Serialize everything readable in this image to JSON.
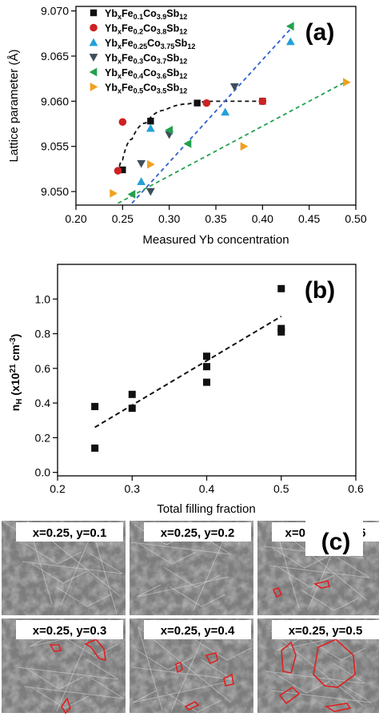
{
  "panel_labels": {
    "a": "(a)",
    "b": "(b)",
    "c": "(c)"
  },
  "chart_data": [
    {
      "type": "scatter",
      "panel": "(a)",
      "xlabel": "Measured Yb concentration",
      "ylabel": "Lattice parameter (Å)",
      "xlim": [
        0.2,
        0.5
      ],
      "ylim": [
        9.0485,
        9.0705
      ],
      "xticks": [
        "0.20",
        "0.25",
        "0.30",
        "0.35",
        "0.40",
        "0.45",
        "0.50"
      ],
      "yticks": [
        "9.050",
        "9.055",
        "9.060",
        "9.065",
        "9.070"
      ],
      "ytick_values": [
        9.05,
        9.055,
        9.06,
        9.065,
        9.07
      ],
      "legend_position": "top-left",
      "series": [
        {
          "name": [
            "Yb",
            "x",
            "Fe",
            "0.1",
            "Co",
            "3.9",
            "Sb",
            "12"
          ],
          "marker": "square",
          "color": "#111111",
          "points": [
            [
              0.25,
              9.0524
            ],
            [
              0.28,
              9.0578
            ],
            [
              0.33,
              9.0598
            ],
            [
              0.4,
              9.06
            ]
          ]
        },
        {
          "name": [
            "Yb",
            "x",
            "Fe",
            "0.2",
            "Co",
            "3.8",
            "Sb",
            "12"
          ],
          "marker": "circle",
          "color": "#cc2222",
          "points": [
            [
              0.245,
              9.0523
            ],
            [
              0.25,
              9.0577
            ],
            [
              0.34,
              9.0598
            ],
            [
              0.4,
              9.06
            ]
          ]
        },
        {
          "name": [
            "Yb",
            "x",
            "Fe",
            "0.25",
            "Co",
            "3.75",
            "Sb",
            "12"
          ],
          "marker": "triangle-up",
          "color": "#22a0d8",
          "points": [
            [
              0.27,
              9.0511
            ],
            [
              0.28,
              9.057
            ],
            [
              0.36,
              9.0588
            ],
            [
              0.43,
              9.0666
            ]
          ]
        },
        {
          "name": [
            "Yb",
            "x",
            "Fe",
            "0.3",
            "Co",
            "3.7",
            "Sb",
            "12"
          ],
          "marker": "triangle-down",
          "color": "#3d4e5a",
          "points": [
            [
              0.27,
              9.0531
            ],
            [
              0.28,
              9.05
            ],
            [
              0.3,
              9.0563
            ],
            [
              0.37,
              9.0616
            ]
          ]
        },
        {
          "name": [
            "Yb",
            "x",
            "Fe",
            "0.4",
            "Co",
            "3.6",
            "Sb",
            "12"
          ],
          "marker": "triangle-left",
          "color": "#22a050",
          "points": [
            [
              0.26,
              9.0497
            ],
            [
              0.3,
              9.0568
            ],
            [
              0.32,
              9.0553
            ],
            [
              0.43,
              9.0683
            ]
          ]
        },
        {
          "name": [
            "Yb",
            "x",
            "Fe",
            "0.5",
            "Co",
            "3.5",
            "Sb",
            "12"
          ],
          "marker": "triangle-right",
          "color": "#f0a020",
          "points": [
            [
              0.24,
              9.0498
            ],
            [
              0.28,
              9.053
            ],
            [
              0.38,
              9.055
            ],
            [
              0.49,
              9.0621
            ]
          ]
        }
      ],
      "fit_lines": [
        {
          "color": "#111111",
          "style": "curve",
          "points": [
            [
              0.245,
              9.052
            ],
            [
              0.25,
              9.0535
            ],
            [
              0.26,
              9.0558
            ],
            [
              0.275,
              9.0576
            ],
            [
              0.295,
              9.059
            ],
            [
              0.32,
              9.0597
            ],
            [
              0.35,
              9.06
            ],
            [
              0.4,
              9.06
            ]
          ]
        },
        {
          "color": "#3060d0",
          "style": "line",
          "points": [
            [
              0.26,
              9.0487
            ],
            [
              0.43,
              9.068
            ]
          ]
        },
        {
          "color": "#22a050",
          "style": "line",
          "points": [
            [
              0.245,
              9.0487
            ],
            [
              0.49,
              9.0622
            ]
          ]
        }
      ]
    },
    {
      "type": "scatter",
      "panel": "(b)",
      "xlabel": "Total filling fraction",
      "ylabel": {
        "main": "n",
        "sub": "H",
        "rest": "(x10",
        "sup": "21",
        "unit": "cm",
        "unit_sup": "-3",
        "close": ")"
      },
      "xlim": [
        0.2,
        0.6
      ],
      "ylim": [
        -0.02,
        1.2
      ],
      "xticks": [
        "0.2",
        "0.3",
        "0.4",
        "0.5",
        "0.6"
      ],
      "yticks": [
        "0.0",
        "0.2",
        "0.4",
        "0.6",
        "0.8",
        "1.0"
      ],
      "ytick_values": [
        0.0,
        0.2,
        0.4,
        0.6,
        0.8,
        1.0
      ],
      "points": [
        [
          0.25,
          0.38
        ],
        [
          0.25,
          0.14
        ],
        [
          0.3,
          0.45
        ],
        [
          0.3,
          0.37
        ],
        [
          0.4,
          0.67
        ],
        [
          0.4,
          0.61
        ],
        [
          0.4,
          0.52
        ],
        [
          0.5,
          1.06
        ],
        [
          0.5,
          0.83
        ],
        [
          0.5,
          0.81
        ]
      ],
      "fit_line": [
        [
          0.25,
          0.26
        ],
        [
          0.5,
          0.9
        ]
      ]
    }
  ],
  "micrographs": [
    {
      "label": "x=0.25, y=0.1"
    },
    {
      "label": "x=0.25, y=0.2"
    },
    {
      "label": "x=0.25, y=0.25"
    },
    {
      "label": "x=0.25, y=0.3"
    },
    {
      "label": "x=0.25, y=0.4"
    },
    {
      "label": "x=0.25, y=0.5"
    }
  ]
}
